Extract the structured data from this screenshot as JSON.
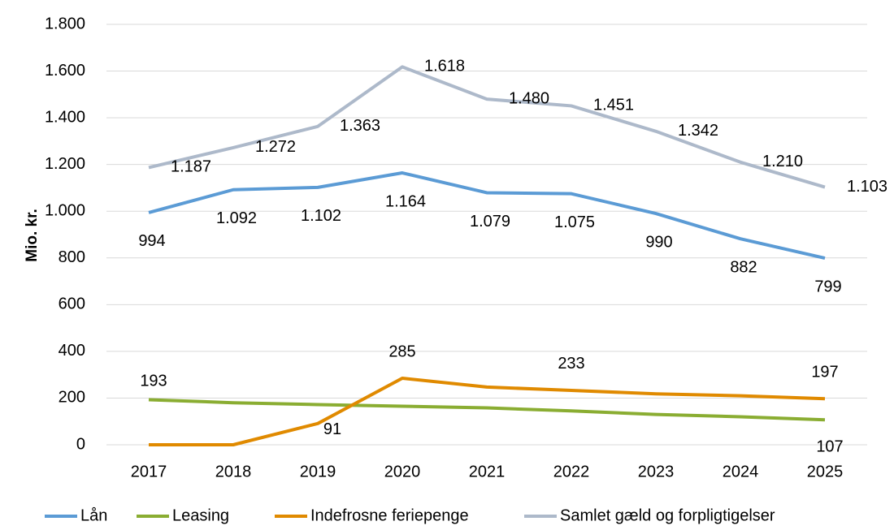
{
  "chart_data": {
    "type": "line",
    "y_label": "Mio. kr.",
    "categories": [
      "2017",
      "2018",
      "2019",
      "2020",
      "2021",
      "2022",
      "2023",
      "2024",
      "2025"
    ],
    "series": [
      {
        "name": "Lån",
        "color": "#5b9bd5",
        "values": [
          994,
          1092,
          1102,
          1164,
          1079,
          1075,
          990,
          882,
          799
        ],
        "value_labels": [
          "994",
          "1.092",
          "1.102",
          "1.164",
          "1.079",
          "1.075",
          "990",
          "882",
          "799"
        ]
      },
      {
        "name": "Leasing",
        "color": "#8aad32",
        "values": [
          193,
          180,
          172,
          165,
          158,
          145,
          130,
          120,
          107
        ],
        "value_labels": [
          "193",
          null,
          null,
          null,
          null,
          null,
          null,
          null,
          "107"
        ]
      },
      {
        "name": "Indefrosne feriepenge",
        "color": "#e08a00",
        "values": [
          0,
          0,
          91,
          285,
          247,
          233,
          218,
          210,
          197
        ],
        "value_labels": [
          null,
          null,
          "91",
          "285",
          null,
          "233",
          null,
          null,
          "197"
        ]
      },
      {
        "name": "Samlet gæld og forpligtigelser",
        "color": "#adb9ca",
        "values": [
          1187,
          1272,
          1363,
          1618,
          1480,
          1451,
          1342,
          1210,
          1103
        ],
        "value_labels": [
          "1.187",
          "1.272",
          "1.363",
          "1.618",
          "1.480",
          "1.451",
          "1.342",
          "1.210",
          "1.103"
        ]
      }
    ],
    "ylim": [
      0,
      1800
    ],
    "yticks": [
      0,
      200,
      400,
      600,
      800,
      {
        "value": 1000,
        "label": "1.000"
      },
      {
        "value": 1200,
        "label": "1.200"
      },
      {
        "value": 1400,
        "label": "1.400"
      },
      {
        "value": 1600,
        "label": "1.600"
      },
      {
        "value": 1800,
        "label": "1.800"
      }
    ],
    "grid": true,
    "legend": "bottom"
  }
}
